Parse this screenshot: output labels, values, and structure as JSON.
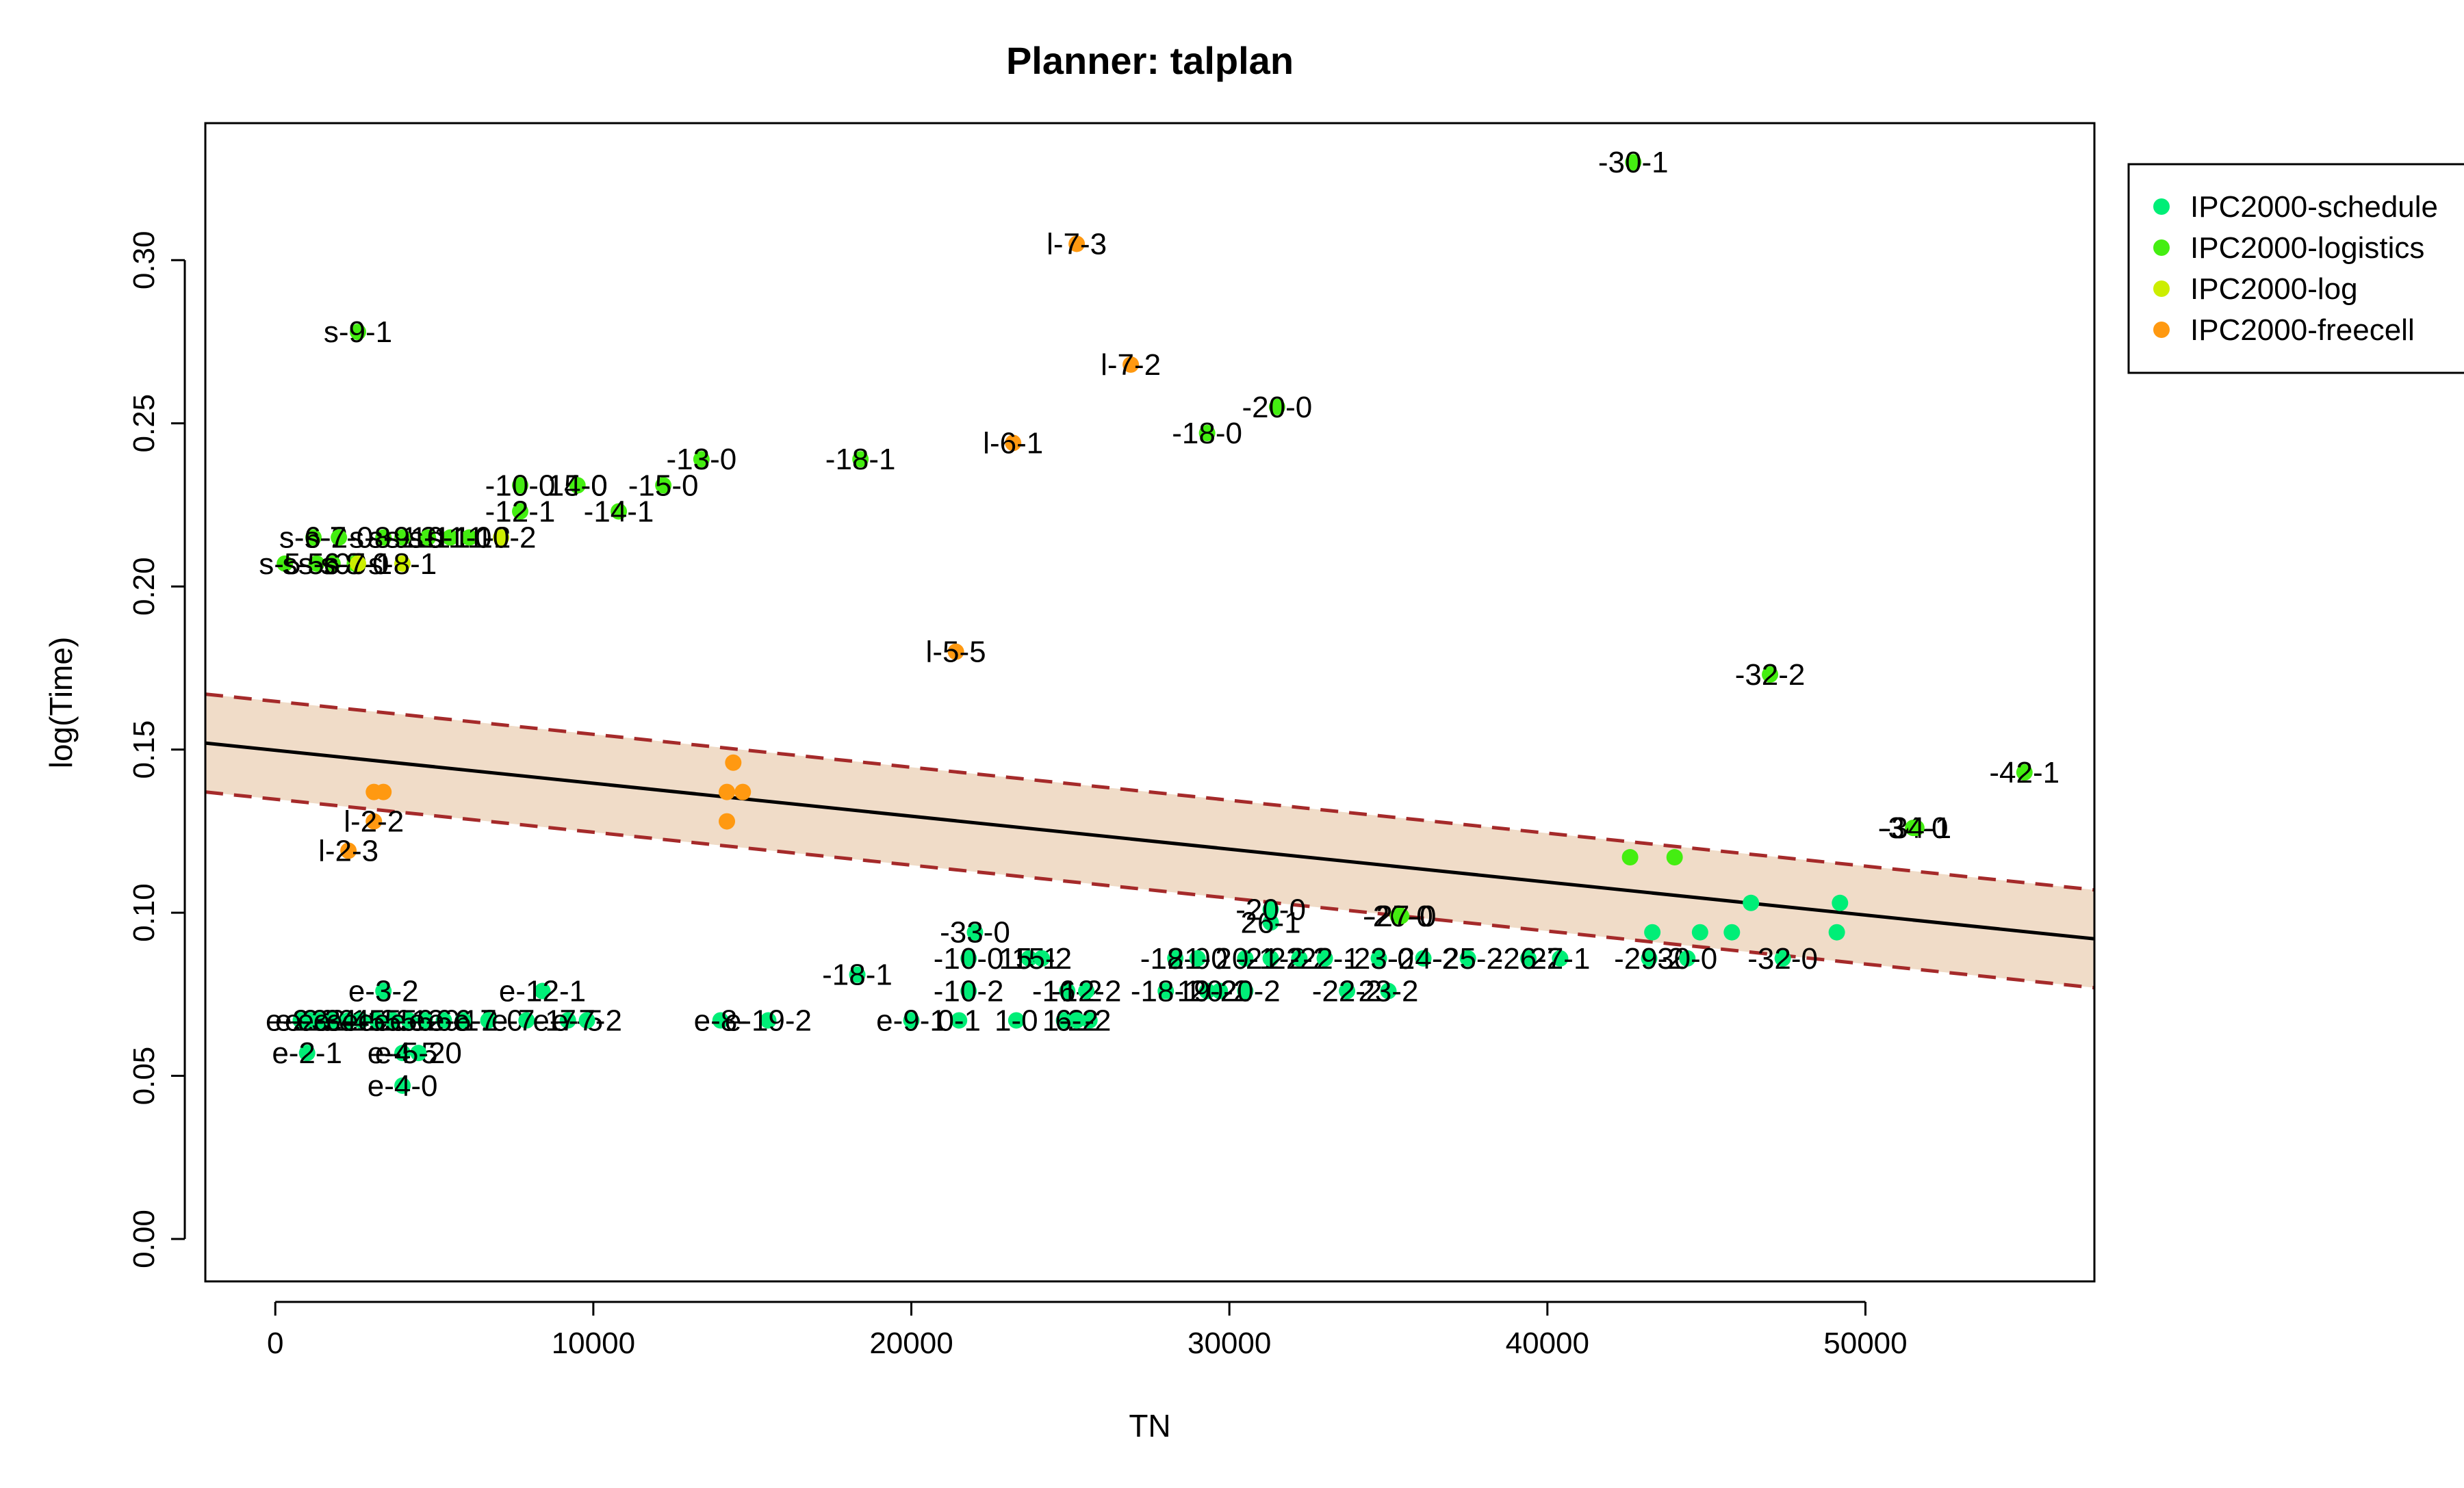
{
  "chart_data": {
    "type": "scatter",
    "title": "Planner: talplan",
    "xlabel": "TN",
    "ylabel": "log(Time)",
    "xlim": [
      -2200,
      57200
    ],
    "ylim": [
      -0.013,
      0.342
    ],
    "x_ticks": [
      0,
      10000,
      20000,
      30000,
      40000,
      50000
    ],
    "x_tick_labels": [
      "0",
      "10000",
      "20000",
      "30000",
      "40000",
      "50000"
    ],
    "y_ticks": [
      0.0,
      0.05,
      0.1,
      0.15,
      0.2,
      0.25,
      0.3
    ],
    "y_tick_labels": [
      "0.00",
      "0.05",
      "0.10",
      "0.15",
      "0.20",
      "0.25",
      "0.30"
    ],
    "grid": false,
    "legend_position": "top-right",
    "legend": [
      {
        "name": "IPC2000-schedule",
        "color": "#00ee77"
      },
      {
        "name": "IPC2000-logistics",
        "color": "#44ee11"
      },
      {
        "name": "IPC2000-log",
        "color": "#ccee00"
      },
      {
        "name": "IPC2000-freecell",
        "color": "#ff9911"
      }
    ],
    "regression": {
      "line": [
        [
          -2200,
          0.152
        ],
        [
          57200,
          0.092
        ]
      ],
      "upper": [
        [
          -2200,
          0.167
        ],
        [
          57200,
          0.107
        ]
      ],
      "lower": [
        [
          -2200,
          0.137
        ],
        [
          57200,
          0.077
        ]
      ],
      "line_color": "#000000",
      "bound_color": "#a52a2a",
      "band_color": "#f0dcc8"
    },
    "series": [
      {
        "name": "IPC2000-schedule",
        "color": "#00ee77",
        "points": [
          {
            "x": 1000,
            "y": 0.057,
            "label": "e-2-1"
          },
          {
            "x": 800,
            "y": 0.067,
            "label": "e-2-0"
          },
          {
            "x": 1100,
            "y": 0.067,
            "label": "e-2-2"
          },
          {
            "x": 1400,
            "y": 0.067,
            "label": "e-3-0"
          },
          {
            "x": 1800,
            "y": 0.067,
            "label": "e-3-1"
          },
          {
            "x": 2300,
            "y": 0.067,
            "label": "e-4-1"
          },
          {
            "x": 2700,
            "y": 0.067,
            "label": "e-4-2"
          },
          {
            "x": 3200,
            "y": 0.067,
            "label": "e-5-0"
          },
          {
            "x": 3700,
            "y": 0.067,
            "label": "e-5-1"
          },
          {
            "x": 4200,
            "y": 0.067,
            "label": "e-5-2"
          },
          {
            "x": 4700,
            "y": 0.067,
            "label": "e-6-0"
          },
          {
            "x": 5300,
            "y": 0.067,
            "label": "e-6-1"
          },
          {
            "x": 5900,
            "y": 0.067,
            "label": "e-6-2"
          },
          {
            "x": 6700,
            "y": 0.067,
            "label": "e-7-0"
          },
          {
            "x": 7900,
            "y": 0.067,
            "label": "e-7-1"
          },
          {
            "x": 9200,
            "y": 0.067,
            "label": "e-7-5"
          },
          {
            "x": 9800,
            "y": 0.067,
            "label": "e-7-2"
          },
          {
            "x": 3400,
            "y": 0.076,
            "label": "e-3-2"
          },
          {
            "x": 8400,
            "y": 0.076,
            "label": "e-12-1"
          },
          {
            "x": 4000,
            "y": 0.057,
            "label": "e-4-5"
          },
          {
            "x": 4500,
            "y": 0.057,
            "label": "e-5-20"
          },
          {
            "x": 4000,
            "y": 0.047,
            "label": "e-4-0"
          },
          {
            "x": 14000,
            "y": 0.067,
            "label": "e-8-"
          },
          {
            "x": 15500,
            "y": 0.067,
            "label": "e-19-2"
          },
          {
            "x": 20000,
            "y": 0.067,
            "label": "e-9-1"
          },
          {
            "x": 21500,
            "y": 0.067,
            "label": "0-1"
          },
          {
            "x": 23300,
            "y": 0.067,
            "label": "1-0"
          },
          {
            "x": 24800,
            "y": 0.067,
            "label": "1-1"
          },
          {
            "x": 25600,
            "y": 0.067,
            "label": "2-2"
          },
          {
            "x": 25200,
            "y": 0.067,
            "label": "6-2"
          },
          {
            "x": 18300,
            "y": 0.081,
            "label": "-18-1"
          },
          {
            "x": 21800,
            "y": 0.076,
            "label": "-10-2"
          },
          {
            "x": 21800,
            "y": 0.086,
            "label": "-10-0"
          },
          {
            "x": 22000,
            "y": 0.094,
            "label": "-33-0"
          },
          {
            "x": 23700,
            "y": 0.086,
            "label": "15-1"
          },
          {
            "x": 24100,
            "y": 0.086,
            "label": "15-2"
          },
          {
            "x": 24900,
            "y": 0.076,
            "label": "-16-2"
          },
          {
            "x": 25500,
            "y": 0.076,
            "label": "-12-2"
          },
          {
            "x": 28000,
            "y": 0.076,
            "label": "-18-1"
          },
          {
            "x": 28300,
            "y": 0.086,
            "label": "-18-0"
          },
          {
            "x": 29000,
            "y": 0.086,
            "label": "21-0"
          },
          {
            "x": 29300,
            "y": 0.076,
            "label": "19-2"
          },
          {
            "x": 29700,
            "y": 0.076,
            "label": "20-2"
          },
          {
            "x": 30500,
            "y": 0.076,
            "label": "-20-2"
          },
          {
            "x": 30500,
            "y": 0.086,
            "label": "20-1"
          },
          {
            "x": 31300,
            "y": 0.086,
            "label": "-21-2"
          },
          {
            "x": 31300,
            "y": 0.097,
            "label": "26-1"
          },
          {
            "x": 31300,
            "y": 0.101,
            "label": "-20-0"
          },
          {
            "x": 32200,
            "y": 0.086,
            "label": "22-2"
          },
          {
            "x": 33000,
            "y": 0.086,
            "label": "-22-1"
          },
          {
            "x": 33700,
            "y": 0.076,
            "label": "-22-2"
          },
          {
            "x": 34700,
            "y": 0.086,
            "label": "-23-0"
          },
          {
            "x": 35000,
            "y": 0.076,
            "label": "23-2"
          },
          {
            "x": 36100,
            "y": 0.086,
            "label": "-24-2"
          },
          {
            "x": 37500,
            "y": 0.086,
            "label": "-25-2"
          },
          {
            "x": 39400,
            "y": 0.086,
            "label": "-26-2"
          },
          {
            "x": 40400,
            "y": 0.086,
            "label": "27-1"
          },
          {
            "x": 43200,
            "y": 0.086,
            "label": "-29-2"
          },
          {
            "x": 44400,
            "y": 0.086,
            "label": "30-0"
          },
          {
            "x": 47400,
            "y": 0.086,
            "label": "-32-0"
          },
          {
            "x": 43300,
            "y": 0.094,
            "label": ""
          },
          {
            "x": 44800,
            "y": 0.094,
            "label": ""
          },
          {
            "x": 45800,
            "y": 0.094,
            "label": ""
          },
          {
            "x": 49100,
            "y": 0.094,
            "label": ""
          },
          {
            "x": 46400,
            "y": 0.103,
            "label": ""
          },
          {
            "x": 49200,
            "y": 0.103,
            "label": ""
          }
        ]
      },
      {
        "name": "IPC2000-logistics",
        "color": "#44ee11",
        "points": [
          {
            "x": 2600,
            "y": 0.278,
            "label": "s-9-1"
          },
          {
            "x": 300,
            "y": 0.207,
            "label": "s-5-"
          },
          {
            "x": 1300,
            "y": 0.207,
            "label": "s-5-0"
          },
          {
            "x": 1800,
            "y": 0.207,
            "label": "s-6-0"
          },
          {
            "x": 2500,
            "y": 0.207,
            "label": "s-8-0"
          },
          {
            "x": 1200,
            "y": 0.215,
            "label": "s-6-2"
          },
          {
            "x": 2000,
            "y": 0.215,
            "label": "s-7-0"
          },
          {
            "x": 3400,
            "y": 0.215,
            "label": "s-8-1"
          },
          {
            "x": 4000,
            "y": 0.215,
            "label": "s-9-2"
          },
          {
            "x": 4800,
            "y": 0.215,
            "label": "s-10-1"
          },
          {
            "x": 5500,
            "y": 0.215,
            "label": "s-11-0"
          },
          {
            "x": 6100,
            "y": 0.215,
            "label": "s-11-2"
          },
          {
            "x": 7700,
            "y": 0.223,
            "label": "-12-1"
          },
          {
            "x": 7700,
            "y": 0.231,
            "label": "-10-0"
          },
          {
            "x": 9500,
            "y": 0.231,
            "label": "15-0"
          },
          {
            "x": 9500,
            "y": 0.231,
            "label": "14-0"
          },
          {
            "x": 10800,
            "y": 0.223,
            "label": "-14-1"
          },
          {
            "x": 12200,
            "y": 0.231,
            "label": "-15-0"
          },
          {
            "x": 13400,
            "y": 0.239,
            "label": "-13-0"
          },
          {
            "x": 18400,
            "y": 0.239,
            "label": "-18-1"
          },
          {
            "x": 29300,
            "y": 0.247,
            "label": "-18-0"
          },
          {
            "x": 31500,
            "y": 0.255,
            "label": "-20-0"
          },
          {
            "x": 42700,
            "y": 0.33,
            "label": "-30-1"
          },
          {
            "x": 47000,
            "y": 0.173,
            "label": "-32-2"
          },
          {
            "x": 51500,
            "y": 0.126,
            "label": "-34-0"
          },
          {
            "x": 51600,
            "y": 0.126,
            "label": "-34-1"
          },
          {
            "x": 55000,
            "y": 0.143,
            "label": "-42-1"
          },
          {
            "x": 35300,
            "y": 0.099,
            "label": "-26-0"
          },
          {
            "x": 35400,
            "y": 0.099,
            "label": "-27-0"
          },
          {
            "x": 42600,
            "y": 0.117,
            "label": ""
          },
          {
            "x": 44000,
            "y": 0.117,
            "label": ""
          }
        ]
      },
      {
        "name": "IPC2000-log",
        "color": "#ccee00",
        "points": [
          {
            "x": 2600,
            "y": 0.207,
            "label": "s-7-1"
          },
          {
            "x": 4000,
            "y": 0.207,
            "label": "s-8-1"
          },
          {
            "x": 7100,
            "y": 0.215,
            "label": "-10-2"
          }
        ]
      },
      {
        "name": "IPC2000-freecell",
        "color": "#ff9911",
        "points": [
          {
            "x": 25200,
            "y": 0.305,
            "label": "l-7-3"
          },
          {
            "x": 26900,
            "y": 0.268,
            "label": "l-7-2"
          },
          {
            "x": 23200,
            "y": 0.244,
            "label": "l-6-1"
          },
          {
            "x": 21400,
            "y": 0.18,
            "label": "l-5-5"
          },
          {
            "x": 3100,
            "y": 0.128,
            "label": "l-2-2"
          },
          {
            "x": 2300,
            "y": 0.119,
            "label": "l-2-3"
          },
          {
            "x": 3100,
            "y": 0.137,
            "label": ""
          },
          {
            "x": 3400,
            "y": 0.137,
            "label": ""
          },
          {
            "x": 14400,
            "y": 0.146,
            "label": ""
          },
          {
            "x": 14200,
            "y": 0.137,
            "label": ""
          },
          {
            "x": 14700,
            "y": 0.137,
            "label": ""
          },
          {
            "x": 14200,
            "y": 0.128,
            "label": ""
          }
        ]
      }
    ]
  }
}
